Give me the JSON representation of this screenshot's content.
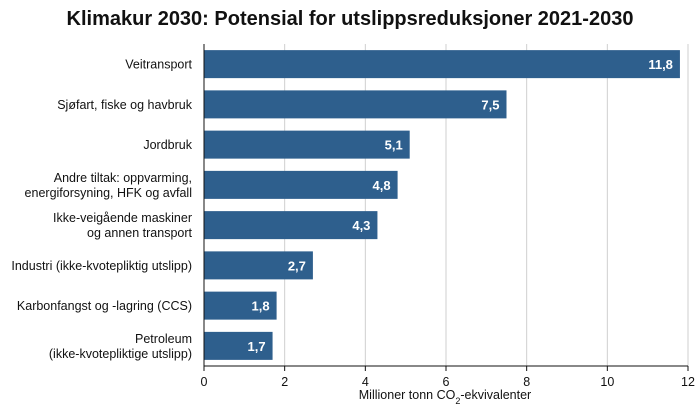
{
  "chart_data": {
    "type": "bar",
    "orientation": "horizontal",
    "title": "Klimakur 2030: Potensial for utslippsreduksjoner 2021-2030",
    "categories": [
      [
        "Veitransport"
      ],
      [
        "Sjøfart, fiske og havbruk"
      ],
      [
        "Jordbruk"
      ],
      [
        "Andre tiltak: oppvarming,",
        "energiforsyning, HFK og avfall"
      ],
      [
        "Ikke-veigående maskiner",
        "og annen transport"
      ],
      [
        "Industri (ikke-kvotepliktig utslipp)"
      ],
      [
        "Karbonfangst og -lagring (CCS)"
      ],
      [
        "Petroleum",
        "(ikke-kvotepliktige utslipp)"
      ]
    ],
    "values": [
      11.8,
      7.5,
      5.1,
      4.8,
      4.3,
      2.7,
      1.8,
      1.7
    ],
    "value_labels": [
      "11,8",
      "7,5",
      "5,1",
      "4,8",
      "4,3",
      "2,7",
      "1,8",
      "1,7"
    ],
    "xlabel": {
      "before": "Millioner tonn CO",
      "sub": "2",
      "after": "-ekvivalenter"
    },
    "xlim": [
      0,
      12
    ],
    "xticks": [
      0,
      2,
      4,
      6,
      8,
      10,
      12
    ],
    "grid": true,
    "bar_color": "#2e5f8d",
    "grid_color": "#cfcfcf"
  }
}
